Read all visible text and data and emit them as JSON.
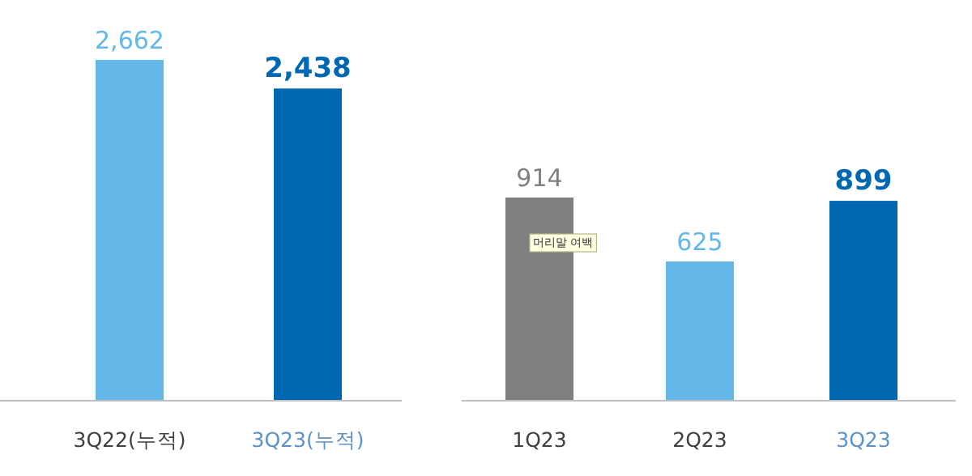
{
  "chart_data": [
    {
      "type": "bar",
      "categories": [
        "3Q22(누적)",
        "3Q23(누적)"
      ],
      "values": [
        2662,
        2438
      ],
      "colors": [
        "#63b8e8",
        "#0068b3"
      ],
      "value_labels": [
        "2,662",
        "2,438"
      ]
    },
    {
      "type": "bar",
      "categories": [
        "1Q23",
        "2Q23",
        "3Q23"
      ],
      "values": [
        914,
        625,
        899
      ],
      "colors": [
        "#7f7f7f",
        "#63b8e8",
        "#0068b3"
      ],
      "value_labels": [
        "914",
        "625",
        "899"
      ],
      "annotations": [
        "머리말 여백"
      ]
    }
  ]
}
